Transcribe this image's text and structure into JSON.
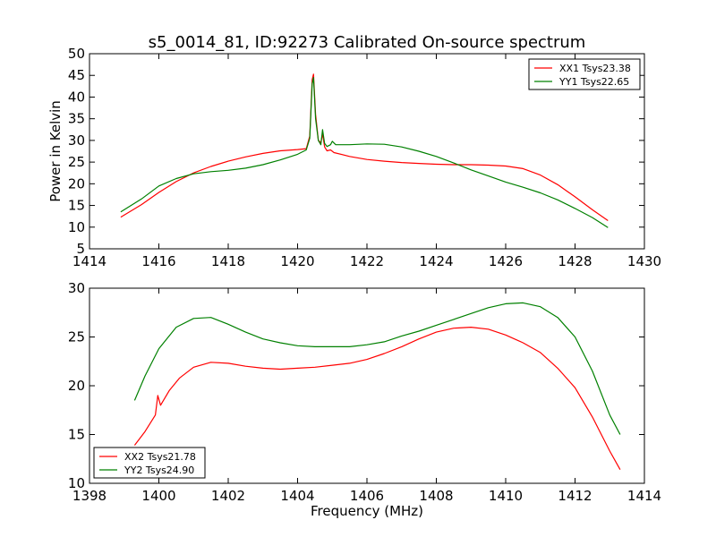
{
  "chart_data": [
    {
      "type": "line",
      "title": "s5_0014_81, ID:92273 Calibrated On-source spectrum",
      "xlabel": "",
      "ylabel": "Power in Kelvin",
      "xlim": [
        1414,
        1430
      ],
      "ylim": [
        5,
        50
      ],
      "xticks": [
        1414,
        1416,
        1418,
        1420,
        1422,
        1424,
        1426,
        1428,
        1430
      ],
      "xtick_labels": [
        "1414",
        "1416",
        "1418",
        "1420",
        "1422",
        "1424",
        "1426",
        "1428",
        "1430"
      ],
      "yticks": [
        5,
        10,
        15,
        20,
        25,
        30,
        35,
        40,
        45,
        50
      ],
      "ytick_labels": [
        "5",
        "10",
        "15",
        "20",
        "25",
        "30",
        "35",
        "40",
        "45",
        "50"
      ],
      "legend_position": "top-right",
      "grid": false,
      "series": [
        {
          "name": "XX1 Tsys23.38",
          "color": "#ff0000",
          "points": [
            [
              1414.9,
              12.3
            ],
            [
              1415.5,
              15.2
            ],
            [
              1416.0,
              18.0
            ],
            [
              1416.5,
              20.5
            ],
            [
              1417.0,
              22.5
            ],
            [
              1417.5,
              24.0
            ],
            [
              1418.0,
              25.2
            ],
            [
              1418.5,
              26.2
            ],
            [
              1419.0,
              27.0
            ],
            [
              1419.5,
              27.6
            ],
            [
              1420.0,
              27.9
            ],
            [
              1420.25,
              28.1
            ],
            [
              1420.35,
              31.0
            ],
            [
              1420.42,
              44.0
            ],
            [
              1420.46,
              45.3
            ],
            [
              1420.52,
              36.0
            ],
            [
              1420.6,
              30.0
            ],
            [
              1420.67,
              29.5
            ],
            [
              1420.72,
              31.5
            ],
            [
              1420.78,
              28.5
            ],
            [
              1420.85,
              27.6
            ],
            [
              1420.95,
              27.8
            ],
            [
              1421.05,
              27.2
            ],
            [
              1421.5,
              26.3
            ],
            [
              1422.0,
              25.6
            ],
            [
              1422.5,
              25.2
            ],
            [
              1423.0,
              24.9
            ],
            [
              1423.5,
              24.7
            ],
            [
              1424.0,
              24.5
            ],
            [
              1424.5,
              24.4
            ],
            [
              1425.0,
              24.4
            ],
            [
              1425.5,
              24.3
            ],
            [
              1426.0,
              24.1
            ],
            [
              1426.5,
              23.5
            ],
            [
              1427.0,
              22.0
            ],
            [
              1427.5,
              19.8
            ],
            [
              1428.0,
              17.0
            ],
            [
              1428.5,
              14.0
            ],
            [
              1428.95,
              11.5
            ]
          ]
        },
        {
          "name": "YY1 Tsys22.65",
          "color": "#008000",
          "points": [
            [
              1414.9,
              13.5
            ],
            [
              1415.5,
              16.5
            ],
            [
              1416.0,
              19.5
            ],
            [
              1416.5,
              21.2
            ],
            [
              1417.0,
              22.3
            ],
            [
              1417.5,
              22.8
            ],
            [
              1418.0,
              23.1
            ],
            [
              1418.5,
              23.6
            ],
            [
              1419.0,
              24.4
            ],
            [
              1419.5,
              25.5
            ],
            [
              1420.0,
              26.8
            ],
            [
              1420.25,
              27.8
            ],
            [
              1420.35,
              30.5
            ],
            [
              1420.42,
              43.0
            ],
            [
              1420.46,
              44.5
            ],
            [
              1420.52,
              35.0
            ],
            [
              1420.6,
              30.0
            ],
            [
              1420.67,
              29.0
            ],
            [
              1420.72,
              32.5
            ],
            [
              1420.78,
              29.3
            ],
            [
              1420.85,
              28.6
            ],
            [
              1420.95,
              29.0
            ],
            [
              1421.0,
              29.8
            ],
            [
              1421.1,
              29.0
            ],
            [
              1421.5,
              29.0
            ],
            [
              1422.0,
              29.2
            ],
            [
              1422.5,
              29.1
            ],
            [
              1423.0,
              28.5
            ],
            [
              1423.5,
              27.5
            ],
            [
              1424.0,
              26.3
            ],
            [
              1424.5,
              24.8
            ],
            [
              1425.0,
              23.2
            ],
            [
              1425.5,
              21.8
            ],
            [
              1426.0,
              20.4
            ],
            [
              1426.5,
              19.2
            ],
            [
              1427.0,
              17.9
            ],
            [
              1427.5,
              16.3
            ],
            [
              1428.0,
              14.3
            ],
            [
              1428.5,
              12.2
            ],
            [
              1428.95,
              9.9
            ]
          ]
        }
      ]
    },
    {
      "type": "line",
      "title": "",
      "xlabel": "Frequency (MHz)",
      "ylabel": "",
      "xlim": [
        1398,
        1414
      ],
      "ylim": [
        10,
        30
      ],
      "xticks": [
        1398,
        1400,
        1402,
        1404,
        1406,
        1408,
        1410,
        1412,
        1414
      ],
      "xtick_labels": [
        "1398",
        "1400",
        "1402",
        "1404",
        "1406",
        "1408",
        "1410",
        "1412",
        "1414"
      ],
      "yticks": [
        10,
        15,
        20,
        25,
        30
      ],
      "ytick_labels": [
        "10",
        "15",
        "20",
        "25",
        "30"
      ],
      "legend_position": "bottom-left",
      "grid": false,
      "series": [
        {
          "name": "XX2 Tsys21.78",
          "color": "#ff0000",
          "points": [
            [
              1399.3,
              13.9
            ],
            [
              1399.6,
              15.3
            ],
            [
              1399.9,
              17.0
            ],
            [
              1399.97,
              19.0
            ],
            [
              1400.05,
              18.0
            ],
            [
              1400.3,
              19.5
            ],
            [
              1400.6,
              20.8
            ],
            [
              1401.0,
              21.9
            ],
            [
              1401.5,
              22.4
            ],
            [
              1402.0,
              22.3
            ],
            [
              1402.5,
              22.0
            ],
            [
              1403.0,
              21.8
            ],
            [
              1403.5,
              21.7
            ],
            [
              1404.0,
              21.8
            ],
            [
              1404.5,
              21.9
            ],
            [
              1405.0,
              22.1
            ],
            [
              1405.5,
              22.3
            ],
            [
              1406.0,
              22.7
            ],
            [
              1406.5,
              23.3
            ],
            [
              1407.0,
              24.0
            ],
            [
              1407.5,
              24.8
            ],
            [
              1408.0,
              25.5
            ],
            [
              1408.5,
              25.9
            ],
            [
              1409.0,
              26.0
            ],
            [
              1409.5,
              25.8
            ],
            [
              1410.0,
              25.2
            ],
            [
              1410.5,
              24.4
            ],
            [
              1411.0,
              23.4
            ],
            [
              1411.5,
              21.8
            ],
            [
              1412.0,
              19.8
            ],
            [
              1412.5,
              16.8
            ],
            [
              1413.0,
              13.3
            ],
            [
              1413.3,
              11.4
            ]
          ]
        },
        {
          "name": "YY2 Tsys24.90",
          "color": "#008000",
          "points": [
            [
              1399.3,
              18.5
            ],
            [
              1399.6,
              21.0
            ],
            [
              1400.0,
              23.8
            ],
            [
              1400.5,
              26.0
            ],
            [
              1401.0,
              26.9
            ],
            [
              1401.5,
              27.0
            ],
            [
              1402.0,
              26.3
            ],
            [
              1402.5,
              25.5
            ],
            [
              1403.0,
              24.8
            ],
            [
              1403.5,
              24.4
            ],
            [
              1404.0,
              24.1
            ],
            [
              1404.5,
              24.0
            ],
            [
              1405.0,
              24.0
            ],
            [
              1405.5,
              24.0
            ],
            [
              1406.0,
              24.2
            ],
            [
              1406.5,
              24.5
            ],
            [
              1407.0,
              25.1
            ],
            [
              1407.5,
              25.6
            ],
            [
              1408.0,
              26.2
            ],
            [
              1408.5,
              26.8
            ],
            [
              1409.0,
              27.4
            ],
            [
              1409.5,
              28.0
            ],
            [
              1410.0,
              28.4
            ],
            [
              1410.5,
              28.5
            ],
            [
              1411.0,
              28.1
            ],
            [
              1411.5,
              27.0
            ],
            [
              1412.0,
              25.0
            ],
            [
              1412.5,
              21.5
            ],
            [
              1413.0,
              17.0
            ],
            [
              1413.3,
              15.0
            ]
          ]
        }
      ]
    }
  ]
}
